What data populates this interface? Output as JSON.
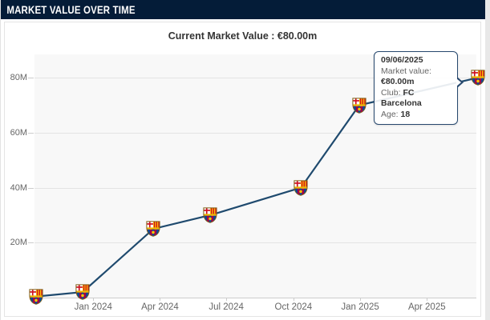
{
  "header": {
    "title": "MARKET VALUE OVER TIME"
  },
  "subtitle": "Current Market Value : €80.00m",
  "chart_data": {
    "type": "line",
    "title": "Market value over time",
    "xlabel": "",
    "ylabel": "",
    "units": "million EUR",
    "ylim": [
      0,
      88.5
    ],
    "grid": "horizontal-only",
    "legend": "none",
    "x_ticks": [
      {
        "label": "Jan 2024",
        "pct": 13.3
      },
      {
        "label": "Apr 2024",
        "pct": 28.4
      },
      {
        "label": "Jul 2024",
        "pct": 43.4
      },
      {
        "label": "Oct 2024",
        "pct": 58.6
      },
      {
        "label": "Jan 2025",
        "pct": 73.7
      },
      {
        "label": "Apr 2025",
        "pct": 88.8
      }
    ],
    "y_ticks": [
      {
        "label": "20M",
        "value": 20
      },
      {
        "label": "40M",
        "value": 40
      },
      {
        "label": "60M",
        "value": 60
      },
      {
        "label": "80M",
        "value": 80
      }
    ],
    "series": [
      {
        "name": "Market value",
        "color": "#1f4a6e",
        "marker": "fc-barcelona-crest",
        "points": [
          {
            "x_pct": 0.4,
            "value": 0.4
          },
          {
            "x_pct": 10.9,
            "value": 2
          },
          {
            "x_pct": 26.9,
            "value": 25
          },
          {
            "x_pct": 39.8,
            "value": 30
          },
          {
            "x_pct": 60.3,
            "value": 40
          },
          {
            "x_pct": 73.5,
            "value": 70
          },
          {
            "x_pct": 100.3,
            "value": 80,
            "date": "09/06/2025",
            "club": "FC Barcelona",
            "age": 18
          }
        ]
      }
    ]
  },
  "tooltip": {
    "date": "09/06/2025",
    "market_value_label": "Market value:",
    "market_value": "€80.00m",
    "club_label": "Club:",
    "club": "FC Barcelona",
    "age_label": "Age:",
    "age": "18"
  },
  "icons": {
    "data_point_marker": "fc-barcelona-crest"
  },
  "colors": {
    "header_bg": "#041c38",
    "header_text": "#ffffff",
    "line": "#1f4a6e",
    "tooltip_border": "#27486e",
    "plot_bg": "#f8f8f8",
    "grid_line": "#e4e4e4",
    "axis_label": "#666666"
  }
}
